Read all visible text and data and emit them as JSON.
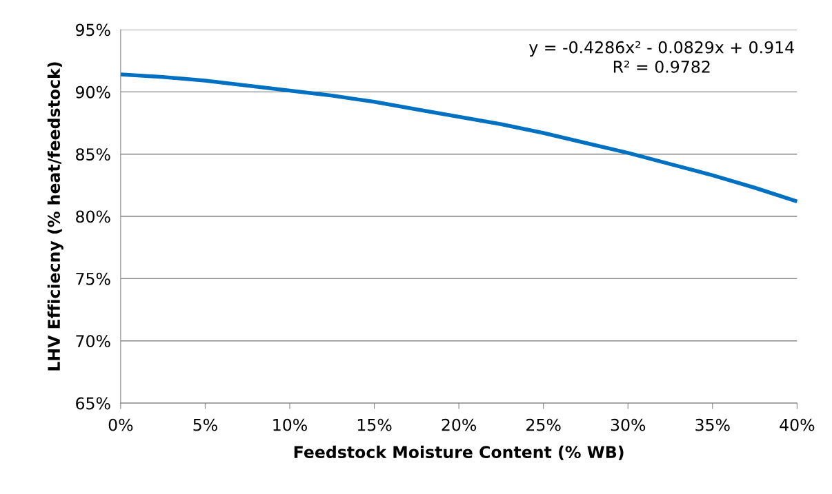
{
  "chart_data": {
    "type": "line",
    "xlabel": "Feedstock Moisture Content (% WB)",
    "ylabel": "LHV Efficiecny (% heat/feedstock)",
    "x": [
      0,
      2.5,
      5,
      7.5,
      10,
      12.5,
      15,
      17.5,
      20,
      22.5,
      25,
      27.5,
      30,
      32.5,
      35,
      37.5,
      40
    ],
    "series": [
      {
        "color": "#0070c0",
        "values": [
          91.4,
          91.2,
          90.9,
          90.5,
          90.1,
          89.7,
          89.2,
          88.6,
          88.0,
          87.4,
          86.7,
          85.9,
          85.1,
          84.2,
          83.3,
          82.3,
          81.2
        ]
      }
    ],
    "xlim": [
      0,
      40
    ],
    "xticks": [
      {
        "value": 0,
        "label": "0%"
      },
      {
        "value": 5,
        "label": "5%"
      },
      {
        "value": 10,
        "label": "10%"
      },
      {
        "value": 15,
        "label": "15%"
      },
      {
        "value": 20,
        "label": "20%"
      },
      {
        "value": 25,
        "label": "25%"
      },
      {
        "value": 30,
        "label": "30%"
      },
      {
        "value": 35,
        "label": "35%"
      },
      {
        "value": 40,
        "label": "40%"
      }
    ],
    "ylim": [
      65,
      95
    ],
    "yticks": [
      {
        "value": 65,
        "label": "65%"
      },
      {
        "value": 70,
        "label": "70%"
      },
      {
        "value": 75,
        "label": "75%"
      },
      {
        "value": 80,
        "label": "80%"
      },
      {
        "value": 85,
        "label": "85%"
      },
      {
        "value": 90,
        "label": "90%"
      },
      {
        "value": 95,
        "label": "95%"
      }
    ],
    "grid": "y",
    "marker": "none",
    "line_style": "solid",
    "annotations": [
      "y = -0.4286x² - 0.0829x + 0.914\nR² = 0.9782"
    ]
  }
}
